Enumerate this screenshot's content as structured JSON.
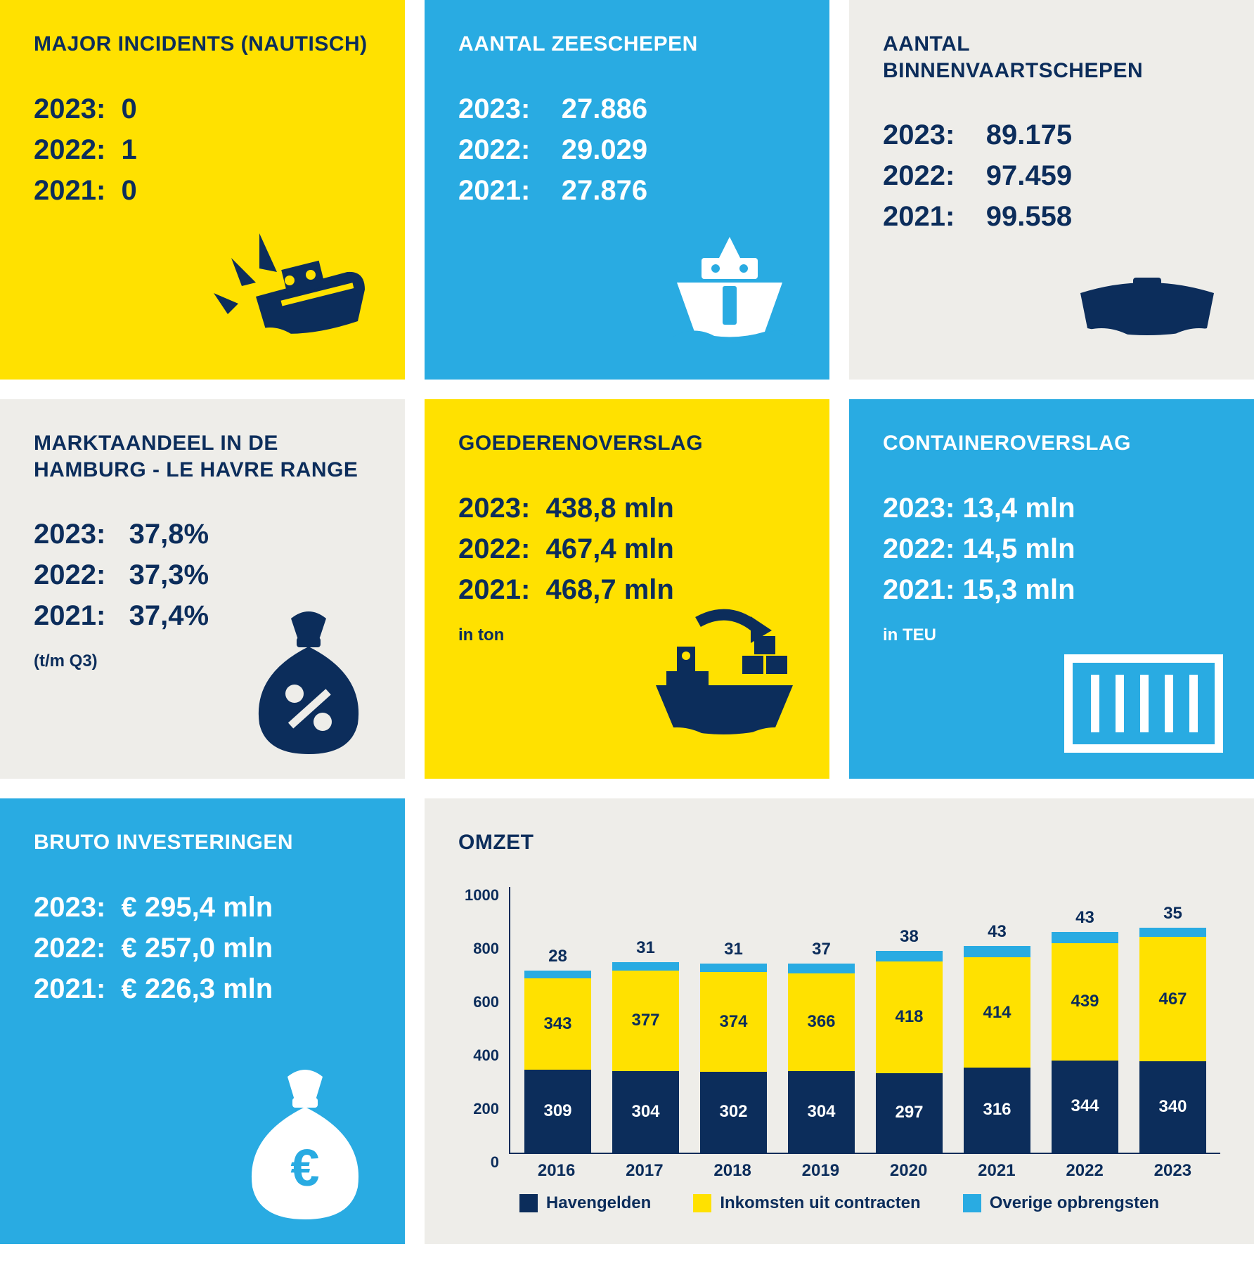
{
  "colors": {
    "navy": "#0c2d5b",
    "yellow": "#ffe100",
    "blue": "#29abe2",
    "lightblue": "#29abe2",
    "gray": "#eeede9",
    "white": "#ffffff"
  },
  "cards": {
    "incidents": {
      "title": "MAJOR INCIDENTS (NAUTISCH)",
      "rows": [
        "2023:  0",
        "2022:  1",
        "2021:  0"
      ]
    },
    "zeeschepen": {
      "title": "AANTAL ZEESCHEPEN",
      "rows": [
        "2023:    27.886",
        "2022:    29.029",
        "2021:    27.876"
      ]
    },
    "binnenvaart": {
      "title": "AANTAL BINNENVAARTSCHEPEN",
      "rows": [
        "2023:    89.175",
        "2022:    97.459",
        "2021:    99.558"
      ]
    },
    "marktaandeel": {
      "title": "MARKTAANDEEL IN DE HAMBURG - LE HAVRE RANGE",
      "rows": [
        "2023:   37,8%",
        "2022:   37,3%",
        "2021:   37,4%"
      ],
      "note": "(t/m Q3)"
    },
    "goederen": {
      "title": "GOEDERENOVERSLAG",
      "rows": [
        "2023:  438,8 mln",
        "2022:  467,4 mln",
        "2021:  468,7 mln"
      ],
      "note": "in ton"
    },
    "container": {
      "title": "CONTAINEROVERSLAG",
      "rows": [
        "2023: 13,4 mln",
        "2022: 14,5 mln",
        "2021: 15,3 mln"
      ],
      "note": "in TEU"
    },
    "investeringen": {
      "title": "BRUTO INVESTERINGEN",
      "rows": [
        "2023:  € 295,4 mln",
        "2022:  € 257,0 mln",
        "2021:  € 226,3 mln"
      ]
    }
  },
  "chart": {
    "title": "OMZET",
    "type": "stacked-bar",
    "ymax": 1000,
    "ytick_step": 200,
    "yticks": [
      0,
      200,
      400,
      600,
      800,
      1000
    ],
    "categories": [
      "2016",
      "2017",
      "2018",
      "2019",
      "2020",
      "2021",
      "2022",
      "2023"
    ],
    "series": [
      {
        "name": "Havengelden",
        "color": "#0c2d5b",
        "text": "#ffffff",
        "values": [
          309,
          304,
          302,
          304,
          297,
          316,
          344,
          340
        ]
      },
      {
        "name": "Inkomsten uit contracten",
        "color": "#ffe100",
        "text": "#0c2d5b",
        "values": [
          343,
          377,
          374,
          366,
          418,
          414,
          439,
          467
        ]
      },
      {
        "name": "Overige opbrengsten",
        "color": "#29abe2",
        "text": "#0c2d5b",
        "values": [
          28,
          31,
          31,
          37,
          38,
          43,
          43,
          35
        ]
      }
    ]
  }
}
